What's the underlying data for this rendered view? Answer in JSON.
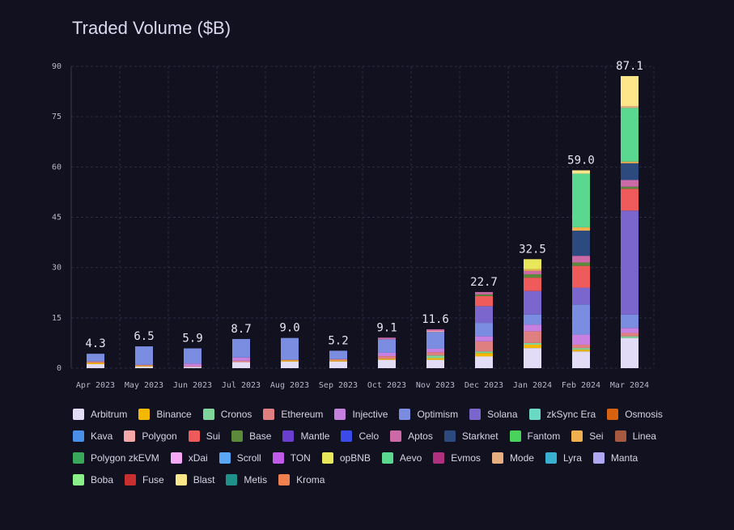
{
  "chart_data": {
    "type": "stacked-bar",
    "title": "Traded Volume ($B)",
    "categories": [
      "Apr 2023",
      "May 2023",
      "Jun 2023",
      "Jul 2023",
      "Aug 2023",
      "Sep 2023",
      "Oct 2023",
      "Nov 2023",
      "Dec 2023",
      "Jan 2024",
      "Feb 2024",
      "Mar 2024"
    ],
    "totals": {
      "values": [
        4.3,
        6.5,
        5.9,
        8.7,
        9,
        5.2,
        9.1,
        11.6,
        22.7,
        32.5,
        59,
        87.1
      ],
      "value_labels": [
        "4.3",
        "6.5",
        "5.9",
        "8.7",
        "9.0",
        "5.2",
        "9.1",
        "11.6",
        "22.7",
        "32.5",
        "59.0",
        "87.1"
      ]
    },
    "ylim": [
      0,
      90
    ],
    "yticks": [
      0,
      15,
      30,
      45,
      60,
      75,
      90
    ],
    "grid": true,
    "series": [
      {
        "name": "Arbitrum",
        "color": "#e3dcf7",
        "values": [
          1.2,
          0.5,
          0.4,
          1.8,
          2,
          2,
          2.5,
          2.5,
          3.5,
          6,
          5,
          9
        ]
      },
      {
        "name": "Binance",
        "color": "#f5b800",
        "values": [
          0.4,
          0.2,
          0,
          0,
          0.3,
          0.3,
          0.3,
          0.5,
          1,
          1,
          0.5,
          0
        ]
      },
      {
        "name": "Cronos",
        "color": "#7ed69b",
        "values": [
          0,
          0,
          0,
          0,
          0,
          0,
          0,
          0.8,
          0.5,
          0.5,
          0.5,
          0.5
        ]
      },
      {
        "name": "Ethereum",
        "color": "#e07f7f",
        "values": [
          0.4,
          0.3,
          0.2,
          0.4,
          0.2,
          0.4,
          0.8,
          1,
          3,
          3.5,
          1,
          1
        ]
      },
      {
        "name": "Injective",
        "color": "#c77fe0",
        "values": [
          0,
          0,
          0.8,
          1,
          0,
          0,
          1,
          1,
          1.5,
          2,
          3,
          1.5
        ]
      },
      {
        "name": "Optimism",
        "color": "#7b8de0",
        "values": [
          2.3,
          5.5,
          4.5,
          5.5,
          6.5,
          2.5,
          4,
          5,
          4,
          3,
          9,
          4
        ]
      },
      {
        "name": "Solana",
        "color": "#7a66cc",
        "values": [
          0,
          0,
          0,
          0,
          0,
          0,
          0,
          0,
          5,
          7,
          5,
          31
        ]
      },
      {
        "name": "zkSync Era",
        "color": "#6cd9c4",
        "values": [
          0,
          0,
          0,
          0,
          0,
          0,
          0,
          0,
          0,
          0,
          0,
          0
        ]
      },
      {
        "name": "Osmosis",
        "color": "#d9620f",
        "values": [
          0,
          0,
          0,
          0,
          0,
          0,
          0,
          0,
          0,
          0,
          0,
          0
        ]
      },
      {
        "name": "Kava",
        "color": "#4a8fe8",
        "values": [
          0,
          0,
          0,
          0,
          0,
          0,
          0,
          0,
          0,
          0,
          0,
          0
        ]
      },
      {
        "name": "Polygon",
        "color": "#f5a8a8",
        "values": [
          0,
          0,
          0,
          0,
          0,
          0,
          0,
          0.3,
          0,
          0,
          0,
          0
        ]
      },
      {
        "name": "Sui",
        "color": "#ef5a5a",
        "values": [
          0,
          0,
          0,
          0,
          0,
          0,
          0,
          0,
          3,
          4,
          6.5,
          6.5
        ]
      },
      {
        "name": "Base",
        "color": "#5a8a3a",
        "values": [
          0,
          0,
          0,
          0,
          0,
          0,
          0,
          0,
          0.5,
          1,
          1,
          0.6
        ]
      },
      {
        "name": "Mantle",
        "color": "#6a3fcf",
        "values": [
          0,
          0,
          0,
          0,
          0,
          0,
          0,
          0,
          0,
          0,
          0,
          0
        ]
      },
      {
        "name": "Celo",
        "color": "#3b4be8",
        "values": [
          0,
          0,
          0,
          0,
          0,
          0,
          0,
          0,
          0,
          0,
          0,
          0
        ]
      },
      {
        "name": "Aptos",
        "color": "#cc6aa8",
        "values": [
          0,
          0,
          0,
          0,
          0,
          0,
          0.5,
          0.5,
          0.7,
          1,
          2,
          2
        ]
      },
      {
        "name": "Starknet",
        "color": "#2c4a7e",
        "values": [
          0,
          0,
          0,
          0,
          0,
          0,
          0,
          0,
          0,
          0,
          7.5,
          5
        ]
      },
      {
        "name": "Fantom",
        "color": "#4ad35a",
        "values": [
          0,
          0,
          0,
          0,
          0,
          0,
          0,
          0,
          0,
          0,
          0,
          0
        ]
      },
      {
        "name": "Sei",
        "color": "#f0b050",
        "values": [
          0,
          0,
          0,
          0,
          0,
          0,
          0,
          0,
          0,
          0.5,
          1,
          0.5
        ]
      },
      {
        "name": "Linea",
        "color": "#a85a40",
        "values": [
          0,
          0,
          0,
          0,
          0,
          0,
          0,
          0,
          0,
          0,
          0,
          0
        ]
      },
      {
        "name": "Polygon zkEVM",
        "color": "#3aa85a",
        "values": [
          0,
          0,
          0,
          0,
          0,
          0,
          0,
          0,
          0,
          0,
          0,
          0
        ]
      },
      {
        "name": "xDai",
        "color": "#f5a8f5",
        "values": [
          0,
          0,
          0,
          0,
          0,
          0,
          0,
          0,
          0,
          0,
          0,
          0
        ]
      },
      {
        "name": "Scroll",
        "color": "#5aa8f5",
        "values": [
          0,
          0,
          0,
          0,
          0,
          0,
          0,
          0,
          0,
          0,
          0,
          0
        ]
      },
      {
        "name": "TON",
        "color": "#c05ae8",
        "values": [
          0,
          0,
          0,
          0,
          0,
          0,
          0,
          0,
          0,
          0,
          0,
          0
        ]
      },
      {
        "name": "opBNB",
        "color": "#e8e85a",
        "values": [
          0,
          0,
          0,
          0,
          0,
          0,
          0,
          0,
          0,
          3,
          0,
          0
        ]
      },
      {
        "name": "Aevo",
        "color": "#5ad890",
        "values": [
          0,
          0,
          0,
          0,
          0,
          0,
          0,
          0,
          0,
          0,
          16,
          16
        ]
      },
      {
        "name": "Evmos",
        "color": "#b03080",
        "values": [
          0,
          0,
          0,
          0,
          0,
          0,
          0,
          0,
          0,
          0,
          0,
          0
        ]
      },
      {
        "name": "Mode",
        "color": "#e8b080",
        "values": [
          0,
          0,
          0,
          0,
          0,
          0,
          0,
          0,
          0,
          0,
          0,
          0.5
        ]
      },
      {
        "name": "Lyra",
        "color": "#3ab0d0",
        "values": [
          0,
          0,
          0,
          0,
          0,
          0,
          0,
          0,
          0,
          0,
          0,
          0
        ]
      },
      {
        "name": "Manta",
        "color": "#b0a8f0",
        "values": [
          0,
          0,
          0,
          0,
          0,
          0,
          0,
          0,
          0,
          0,
          0,
          0
        ]
      },
      {
        "name": "Boba",
        "color": "#8af08a",
        "values": [
          0,
          0,
          0,
          0,
          0,
          0,
          0,
          0,
          0,
          0,
          0,
          0
        ]
      },
      {
        "name": "Fuse",
        "color": "#c83030",
        "values": [
          0,
          0,
          0,
          0,
          0,
          0,
          0,
          0,
          0,
          0,
          0,
          0
        ]
      },
      {
        "name": "Blast",
        "color": "#fde68a",
        "values": [
          0,
          0,
          0,
          0,
          0,
          0,
          0,
          0,
          0,
          0,
          1,
          9
        ]
      },
      {
        "name": "Metis",
        "color": "#20908a",
        "values": [
          0,
          0,
          0,
          0,
          0,
          0,
          0,
          0,
          0,
          0,
          0,
          0
        ]
      },
      {
        "name": "Kroma",
        "color": "#f08050",
        "values": [
          0,
          0,
          0,
          0,
          0,
          0,
          0,
          0,
          0,
          0,
          0,
          0
        ]
      }
    ]
  }
}
